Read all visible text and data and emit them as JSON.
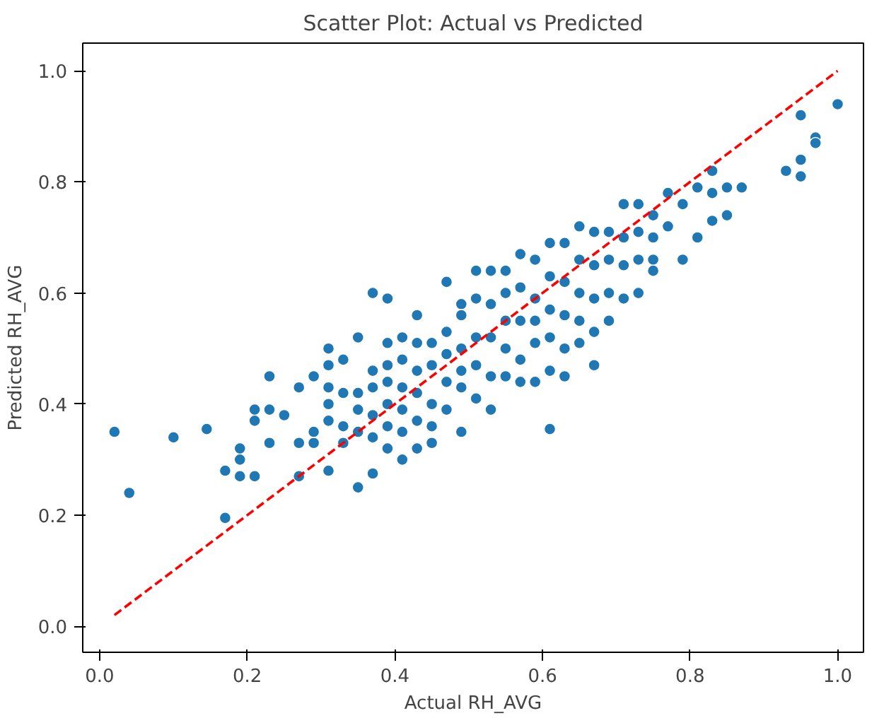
{
  "chart_data": {
    "type": "scatter",
    "title": "Scatter Plot: Actual vs Predicted",
    "xlabel": "Actual RH_AVG",
    "ylabel": "Predicted RH_AVG",
    "xlim": [
      -0.023,
      1.035
    ],
    "ylim": [
      -0.047,
      1.05
    ],
    "xticks": [
      {
        "value": 0,
        "label": "0.0"
      },
      0.2,
      0.4,
      0.6,
      0.8,
      {
        "value": 1,
        "label": "1.0"
      }
    ],
    "yticks": [
      {
        "value": 0,
        "label": "0.0"
      },
      0.2,
      0.4,
      0.6,
      0.8,
      {
        "value": 1,
        "label": "1.0"
      }
    ],
    "series": [
      {
        "color": "#1f77b4",
        "marker": "circle",
        "x": [
          0.02,
          0.04,
          0.1,
          0.145,
          0.17,
          0.17,
          0.19,
          0.19,
          0.19,
          0.21,
          0.21,
          0.21,
          0.23,
          0.23,
          0.23,
          0.25,
          0.27,
          0.27,
          0.27,
          0.29,
          0.29,
          0.29,
          0.31,
          0.31,
          0.31,
          0.31,
          0.31,
          0.31,
          0.33,
          0.33,
          0.33,
          0.33,
          0.35,
          0.35,
          0.35,
          0.35,
          0.35,
          0.37,
          0.37,
          0.37,
          0.37,
          0.37,
          0.37,
          0.39,
          0.39,
          0.39,
          0.39,
          0.39,
          0.39,
          0.39,
          0.41,
          0.41,
          0.41,
          0.41,
          0.41,
          0.41,
          0.43,
          0.43,
          0.43,
          0.43,
          0.43,
          0.43,
          0.45,
          0.45,
          0.45,
          0.45,
          0.45,
          0.47,
          0.47,
          0.47,
          0.47,
          0.47,
          0.49,
          0.49,
          0.49,
          0.49,
          0.49,
          0.49,
          0.51,
          0.51,
          0.51,
          0.51,
          0.51,
          0.53,
          0.53,
          0.53,
          0.53,
          0.53,
          0.55,
          0.55,
          0.55,
          0.55,
          0.55,
          0.57,
          0.57,
          0.57,
          0.57,
          0.57,
          0.59,
          0.59,
          0.59,
          0.59,
          0.59,
          0.61,
          0.61,
          0.61,
          0.61,
          0.61,
          0.61,
          0.63,
          0.63,
          0.63,
          0.63,
          0.63,
          0.65,
          0.65,
          0.65,
          0.65,
          0.65,
          0.67,
          0.67,
          0.67,
          0.67,
          0.67,
          0.69,
          0.69,
          0.69,
          0.69,
          0.71,
          0.71,
          0.71,
          0.71,
          0.73,
          0.73,
          0.73,
          0.73,
          0.75,
          0.75,
          0.75,
          0.75,
          0.77,
          0.77,
          0.79,
          0.79,
          0.81,
          0.81,
          0.83,
          0.83,
          0.83,
          0.85,
          0.85,
          0.87,
          0.93,
          0.95,
          0.95,
          0.95,
          0.97,
          0.97,
          1.0
        ],
        "values": [
          0.35,
          0.24,
          0.34,
          0.355,
          0.195,
          0.28,
          0.32,
          0.3,
          0.27,
          0.39,
          0.37,
          0.27,
          0.45,
          0.39,
          0.33,
          0.38,
          0.27,
          0.33,
          0.43,
          0.33,
          0.45,
          0.35,
          0.5,
          0.47,
          0.43,
          0.4,
          0.37,
          0.28,
          0.48,
          0.42,
          0.36,
          0.33,
          0.52,
          0.42,
          0.39,
          0.35,
          0.25,
          0.6,
          0.46,
          0.43,
          0.38,
          0.34,
          0.275,
          0.59,
          0.51,
          0.47,
          0.44,
          0.4,
          0.36,
          0.32,
          0.52,
          0.48,
          0.43,
          0.39,
          0.35,
          0.3,
          0.51,
          0.56,
          0.46,
          0.42,
          0.37,
          0.32,
          0.51,
          0.47,
          0.4,
          0.36,
          0.33,
          0.62,
          0.53,
          0.49,
          0.44,
          0.39,
          0.58,
          0.56,
          0.5,
          0.46,
          0.43,
          0.35,
          0.64,
          0.59,
          0.52,
          0.47,
          0.41,
          0.64,
          0.58,
          0.52,
          0.45,
          0.39,
          0.64,
          0.6,
          0.55,
          0.5,
          0.45,
          0.67,
          0.61,
          0.55,
          0.48,
          0.44,
          0.66,
          0.59,
          0.55,
          0.51,
          0.44,
          0.69,
          0.63,
          0.57,
          0.52,
          0.46,
          0.355,
          0.69,
          0.62,
          0.56,
          0.5,
          0.45,
          0.72,
          0.66,
          0.6,
          0.55,
          0.51,
          0.71,
          0.65,
          0.59,
          0.53,
          0.47,
          0.71,
          0.66,
          0.6,
          0.55,
          0.76,
          0.7,
          0.65,
          0.59,
          0.76,
          0.71,
          0.66,
          0.6,
          0.74,
          0.7,
          0.66,
          0.64,
          0.78,
          0.72,
          0.76,
          0.66,
          0.79,
          0.7,
          0.82,
          0.78,
          0.73,
          0.79,
          0.74,
          0.79,
          0.82,
          0.92,
          0.84,
          0.81,
          0.88,
          0.87,
          0.94
        ]
      },
      {
        "type": "line",
        "color": "#ff0000",
        "line_style": "dashed",
        "marker": "none",
        "x": [
          0.02,
          1.0
        ],
        "values": [
          0.02,
          1.0
        ]
      }
    ]
  }
}
